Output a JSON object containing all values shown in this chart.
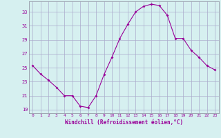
{
  "x": [
    0,
    1,
    2,
    3,
    4,
    5,
    6,
    7,
    8,
    9,
    10,
    11,
    12,
    13,
    14,
    15,
    16,
    17,
    18,
    19,
    20,
    21,
    22,
    23
  ],
  "y": [
    25.3,
    24.1,
    23.2,
    22.2,
    21.0,
    21.0,
    19.5,
    19.3,
    21.0,
    24.0,
    26.5,
    29.2,
    31.2,
    33.0,
    33.8,
    34.1,
    33.9,
    32.5,
    29.2,
    29.2,
    27.5,
    26.5,
    25.3,
    24.7
  ],
  "line_color": "#990099",
  "marker": "D",
  "marker_size": 2,
  "bg_color": "#d6f0f0",
  "grid_color": "#aaaacc",
  "xlabel": "Windchill (Refroidissement éolien,°C)",
  "xlabel_color": "#990099",
  "tick_color": "#990099",
  "ylim": [
    18.5,
    34.5
  ],
  "yticks": [
    19,
    21,
    23,
    25,
    27,
    29,
    31,
    33
  ],
  "xlim": [
    -0.5,
    23.5
  ],
  "xticks": [
    0,
    1,
    2,
    3,
    4,
    5,
    6,
    7,
    8,
    9,
    10,
    11,
    12,
    13,
    14,
    15,
    16,
    17,
    18,
    19,
    20,
    21,
    22,
    23
  ]
}
